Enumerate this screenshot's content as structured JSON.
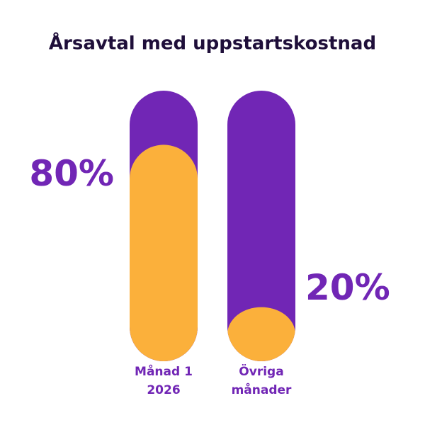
{
  "chart_data": {
    "type": "bar",
    "title": "Årsavtal med uppstartskostnad",
    "categories": [
      "Månad 1 2026",
      "Övriga månader"
    ],
    "values": [
      80,
      20
    ],
    "value_labels": [
      "80%",
      "20%"
    ],
    "ylim": [
      0,
      100
    ],
    "color": "#fbb03b",
    "track_color": "#7126b5"
  }
}
